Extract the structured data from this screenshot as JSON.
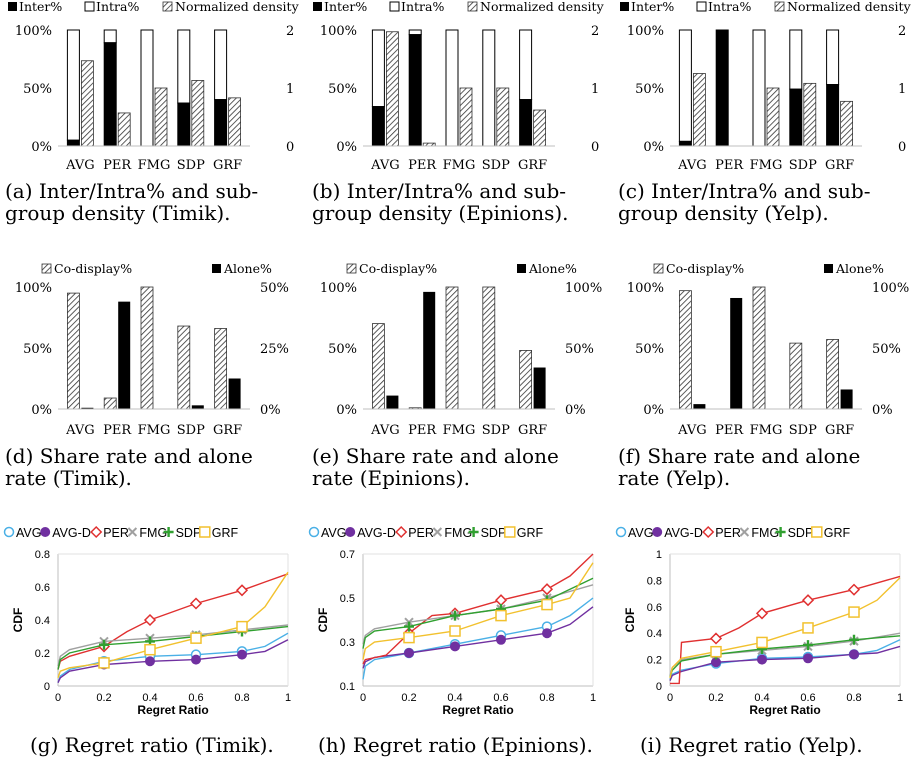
{
  "chart_data": [
    {
      "id": "a",
      "type": "bar",
      "legend": [
        "Inter%",
        "Intra%",
        "Normalized density"
      ],
      "categories": [
        "AVG",
        "PER",
        "FMG",
        "SDP",
        "GRF"
      ],
      "inter": [
        5,
        89,
        0,
        37,
        40
      ],
      "intra": [
        95,
        11,
        100,
        63,
        60
      ],
      "density": [
        1.47,
        0.57,
        1.0,
        1.13,
        0.83
      ],
      "yticks_left": [
        "0%",
        "50%",
        "100%"
      ],
      "yticks_right": [
        "0",
        "1",
        "2"
      ]
    },
    {
      "id": "b",
      "type": "bar",
      "legend": [
        "Inter%",
        "Intra%",
        "Normalized density"
      ],
      "categories": [
        "AVG",
        "PER",
        "FMG",
        "SDP",
        "GRF"
      ],
      "inter": [
        34,
        96,
        0,
        0,
        40
      ],
      "intra": [
        66,
        4,
        100,
        100,
        60
      ],
      "density": [
        1.97,
        0.05,
        1.0,
        1.0,
        0.62
      ],
      "yticks_left": [
        "0%",
        "50%",
        "100%"
      ],
      "yticks_right": [
        "0",
        "1",
        "2"
      ]
    },
    {
      "id": "c",
      "type": "bar",
      "legend": [
        "Inter%",
        "Intra%",
        "Normalized density"
      ],
      "categories": [
        "AVG",
        "PER",
        "FMG",
        "SDP",
        "GRF"
      ],
      "inter": [
        4,
        100,
        0,
        49,
        53
      ],
      "intra": [
        96,
        0,
        100,
        51,
        47
      ],
      "density": [
        1.25,
        0,
        1.0,
        1.08,
        0.77
      ],
      "yticks_left": [
        "0%",
        "50%",
        "100%"
      ],
      "yticks_right": [
        "0",
        "1",
        "2"
      ]
    },
    {
      "id": "d",
      "type": "bar",
      "legend": [
        "Co-display%",
        "Alone%"
      ],
      "categories": [
        "AVG",
        "PER",
        "FMG",
        "SDP",
        "GRF"
      ],
      "codisplay": [
        95,
        9,
        100,
        68,
        66
      ],
      "alone": [
        0.5,
        44,
        0,
        1.5,
        12.5
      ],
      "right_max": 50,
      "yticks_left": [
        "0%",
        "50%",
        "100%"
      ],
      "yticks_right": [
        "0%",
        "25%",
        "50%"
      ]
    },
    {
      "id": "e",
      "type": "bar",
      "legend": [
        "Co-display%",
        "Alone%"
      ],
      "categories": [
        "AVG",
        "PER",
        "FMG",
        "SDP",
        "GRF"
      ],
      "codisplay": [
        70,
        1,
        100,
        100,
        48
      ],
      "alone": [
        11,
        96,
        0,
        0,
        34
      ],
      "right_max": 100,
      "yticks_left": [
        "0%",
        "50%",
        "100%"
      ],
      "yticks_right": [
        "0%",
        "50%",
        "100%"
      ]
    },
    {
      "id": "f",
      "type": "bar",
      "legend": [
        "Co-display%",
        "Alone%"
      ],
      "categories": [
        "AVG",
        "PER",
        "FMG",
        "SDP",
        "GRF"
      ],
      "codisplay": [
        97,
        0,
        100,
        54,
        57
      ],
      "alone": [
        4,
        91,
        0,
        0,
        16
      ],
      "right_max": 100,
      "yticks_left": [
        "0%",
        "50%",
        "100%"
      ],
      "yticks_right": [
        "0%",
        "50%",
        "100%"
      ]
    },
    {
      "id": "g",
      "type": "line",
      "xlabel": "Regret Ratio",
      "ylabel": "CDF",
      "xlim": [
        0,
        1
      ],
      "ylim": [
        0,
        0.8
      ],
      "xticks": [
        "0",
        "0.2",
        "0.4",
        "0.6",
        "0.8",
        "1"
      ],
      "yticks": [
        "0",
        "0.2",
        "0.4",
        "0.6",
        "0.8"
      ],
      "series": [
        {
          "name": "AVG",
          "color": "#4ab0e6",
          "marker": "circle-open",
          "x": [
            0,
            0.01,
            0.05,
            0.2,
            0.4,
            0.6,
            0.8,
            0.9,
            1
          ],
          "y": [
            0.02,
            0.06,
            0.1,
            0.15,
            0.18,
            0.19,
            0.21,
            0.24,
            0.32
          ]
        },
        {
          "name": "AVG-D",
          "color": "#7030a0",
          "marker": "circle-filled",
          "x": [
            0,
            0.01,
            0.05,
            0.2,
            0.4,
            0.6,
            0.8,
            0.9,
            1
          ],
          "y": [
            0.02,
            0.05,
            0.09,
            0.13,
            0.15,
            0.16,
            0.19,
            0.21,
            0.28
          ]
        },
        {
          "name": "PER",
          "color": "#e03030",
          "marker": "diamond",
          "x": [
            0,
            0.01,
            0.05,
            0.2,
            0.3,
            0.4,
            0.6,
            0.8,
            0.9,
            1
          ],
          "y": [
            0.1,
            0.15,
            0.18,
            0.24,
            0.33,
            0.4,
            0.5,
            0.58,
            0.63,
            0.68
          ]
        },
        {
          "name": "FMG",
          "color": "#a0a0a0",
          "marker": "x",
          "x": [
            0,
            0.01,
            0.05,
            0.2,
            0.4,
            0.6,
            0.8,
            1
          ],
          "y": [
            0.12,
            0.18,
            0.22,
            0.27,
            0.29,
            0.31,
            0.34,
            0.37
          ]
        },
        {
          "name": "SDP",
          "color": "#30a030",
          "marker": "plus",
          "x": [
            0,
            0.01,
            0.05,
            0.2,
            0.4,
            0.6,
            0.8,
            1
          ],
          "y": [
            0.1,
            0.16,
            0.2,
            0.25,
            0.27,
            0.3,
            0.33,
            0.36
          ]
        },
        {
          "name": "GRF",
          "color": "#f2c12e",
          "marker": "square",
          "x": [
            0,
            0.01,
            0.05,
            0.2,
            0.4,
            0.6,
            0.8,
            0.9,
            1
          ],
          "y": [
            0.05,
            0.09,
            0.11,
            0.14,
            0.22,
            0.29,
            0.36,
            0.48,
            0.69
          ]
        }
      ]
    },
    {
      "id": "h",
      "type": "line",
      "xlabel": "Regret Ratio",
      "ylabel": "CDF",
      "xlim": [
        0,
        1
      ],
      "ylim": [
        0.1,
        0.7
      ],
      "xticks": [
        "0",
        "0.2",
        "0.4",
        "0.6",
        "0.8",
        "1"
      ],
      "yticks": [
        "0.1",
        "0.3",
        "0.5",
        "0.7"
      ],
      "series": [
        {
          "name": "AVG",
          "color": "#4ab0e6",
          "marker": "circle-open",
          "x": [
            0,
            0.01,
            0.05,
            0.2,
            0.4,
            0.6,
            0.8,
            0.9,
            1
          ],
          "y": [
            0.13,
            0.19,
            0.22,
            0.25,
            0.29,
            0.33,
            0.37,
            0.42,
            0.5
          ]
        },
        {
          "name": "AVG-D",
          "color": "#7030a0",
          "marker": "circle-filled",
          "x": [
            0,
            0.01,
            0.05,
            0.2,
            0.4,
            0.6,
            0.8,
            0.9,
            1
          ],
          "y": [
            0.18,
            0.21,
            0.23,
            0.25,
            0.28,
            0.31,
            0.34,
            0.38,
            0.46
          ]
        },
        {
          "name": "PER",
          "color": "#e03030",
          "marker": "diamond",
          "x": [
            0,
            0.01,
            0.1,
            0.2,
            0.3,
            0.4,
            0.6,
            0.8,
            0.9,
            1
          ],
          "y": [
            0.2,
            0.22,
            0.24,
            0.34,
            0.42,
            0.43,
            0.49,
            0.54,
            0.6,
            0.7
          ]
        },
        {
          "name": "FMG",
          "color": "#a0a0a0",
          "marker": "x",
          "x": [
            0,
            0.01,
            0.05,
            0.2,
            0.4,
            0.6,
            0.8,
            1
          ],
          "y": [
            0.29,
            0.33,
            0.36,
            0.39,
            0.42,
            0.45,
            0.5,
            0.56
          ]
        },
        {
          "name": "SDP",
          "color": "#30a030",
          "marker": "plus",
          "x": [
            0,
            0.01,
            0.05,
            0.2,
            0.4,
            0.6,
            0.8,
            1
          ],
          "y": [
            0.27,
            0.32,
            0.35,
            0.37,
            0.42,
            0.45,
            0.49,
            0.59
          ]
        },
        {
          "name": "GRF",
          "color": "#f2c12e",
          "marker": "square",
          "x": [
            0,
            0.01,
            0.05,
            0.2,
            0.4,
            0.6,
            0.8,
            0.9,
            1
          ],
          "y": [
            0.22,
            0.27,
            0.3,
            0.32,
            0.35,
            0.42,
            0.47,
            0.5,
            0.66
          ]
        }
      ]
    },
    {
      "id": "i",
      "type": "line",
      "xlabel": "Regret Ratio",
      "ylabel": "CDF",
      "xlim": [
        0,
        1
      ],
      "ylim": [
        0,
        1
      ],
      "xticks": [
        "0",
        "0.2",
        "0.4",
        "0.6",
        "0.8",
        "1"
      ],
      "yticks": [
        "0",
        "0.2",
        "0.4",
        "0.6",
        "0.8",
        "1"
      ],
      "series": [
        {
          "name": "AVG",
          "color": "#4ab0e6",
          "marker": "circle-open",
          "x": [
            0,
            0.01,
            0.05,
            0.2,
            0.4,
            0.6,
            0.8,
            0.9,
            1
          ],
          "y": [
            0.05,
            0.09,
            0.12,
            0.17,
            0.21,
            0.22,
            0.24,
            0.27,
            0.35
          ]
        },
        {
          "name": "AVG-D",
          "color": "#7030a0",
          "marker": "circle-filled",
          "x": [
            0,
            0.01,
            0.05,
            0.2,
            0.4,
            0.6,
            0.8,
            0.9,
            1
          ],
          "y": [
            0.04,
            0.08,
            0.11,
            0.18,
            0.2,
            0.21,
            0.24,
            0.25,
            0.3
          ]
        },
        {
          "name": "PER",
          "color": "#e03030",
          "marker": "diamond",
          "x": [
            0,
            0.01,
            0.04,
            0.05,
            0.2,
            0.3,
            0.4,
            0.6,
            0.8,
            1
          ],
          "y": [
            0.02,
            0.02,
            0.02,
            0.33,
            0.36,
            0.44,
            0.55,
            0.65,
            0.73,
            0.83
          ]
        },
        {
          "name": "FMG",
          "color": "#a0a0a0",
          "marker": "x",
          "x": [
            0,
            0.01,
            0.05,
            0.2,
            0.4,
            0.6,
            0.8,
            1
          ],
          "y": [
            0.08,
            0.14,
            0.2,
            0.24,
            0.27,
            0.3,
            0.34,
            0.4
          ]
        },
        {
          "name": "SDP",
          "color": "#30a030",
          "marker": "plus",
          "x": [
            0,
            0.01,
            0.05,
            0.2,
            0.4,
            0.6,
            0.8,
            1
          ],
          "y": [
            0.07,
            0.12,
            0.19,
            0.24,
            0.28,
            0.31,
            0.35,
            0.38
          ]
        },
        {
          "name": "GRF",
          "color": "#f2c12e",
          "marker": "square",
          "x": [
            0,
            0.01,
            0.05,
            0.2,
            0.4,
            0.6,
            0.8,
            0.9,
            1
          ],
          "y": [
            0.06,
            0.14,
            0.21,
            0.26,
            0.33,
            0.44,
            0.56,
            0.65,
            0.82
          ]
        }
      ]
    }
  ],
  "captions": {
    "a": [
      "(a) Inter/Intra% and sub-",
      "group density (Timik)."
    ],
    "b": [
      "(b) Inter/Intra% and sub-",
      "group density (Epinions)."
    ],
    "c": [
      "(c) Inter/Intra% and sub-",
      "group density (Yelp)."
    ],
    "d": [
      "(d) Share rate and alone",
      "rate (Timik)."
    ],
    "e": [
      "(e) Share rate and alone",
      "rate (Epinions)."
    ],
    "f": [
      "(f) Share rate and alone",
      "rate (Yelp)."
    ],
    "g": "(g) Regret ratio (Timik).",
    "h": "(h) Regret ratio (Epinions).",
    "i": "(i) Regret ratio (Yelp)."
  }
}
